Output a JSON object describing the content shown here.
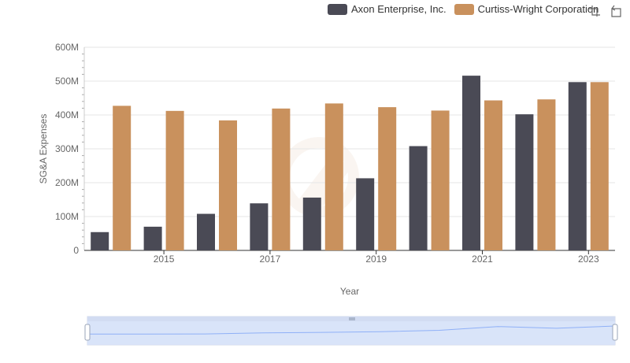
{
  "chart_data": {
    "type": "bar",
    "xlabel": "Year",
    "ylabel": "SG&A Expenses",
    "ylim": [
      0,
      600
    ],
    "yunit": "M",
    "yticks": [
      "0",
      "100M",
      "200M",
      "300M",
      "400M",
      "500M",
      "600M"
    ],
    "x": [
      2014,
      2015,
      2016,
      2017,
      2018,
      2019,
      2020,
      2021,
      2022,
      2023
    ],
    "xtick_labels": [
      "2015",
      "2017",
      "2019",
      "2021",
      "2023"
    ],
    "grid": true,
    "legend_position": "top-right",
    "series": [
      {
        "name": "Axon Enterprise, Inc.",
        "color": "#4a4a55",
        "values": [
          54,
          70,
          108,
          139,
          156,
          213,
          308,
          516,
          402,
          497
        ]
      },
      {
        "name": "Curtiss-Wright Corporation",
        "color": "#c9915d",
        "values": [
          427,
          412,
          384,
          419,
          434,
          423,
          413,
          443,
          446,
          497
        ]
      }
    ]
  },
  "legend": {
    "items": [
      {
        "label": "Axon Enterprise, Inc.",
        "color": "#4a4a55"
      },
      {
        "label": "Curtiss-Wright Corporation",
        "color": "#c9915d"
      }
    ]
  },
  "toolbox": {
    "icons": [
      "zoom-icon",
      "restore-icon"
    ]
  },
  "datazoom": {
    "start_percent": 0,
    "end_percent": 100,
    "fill_color": "#d6e2f8",
    "handle_color": "#8fb0f7"
  }
}
